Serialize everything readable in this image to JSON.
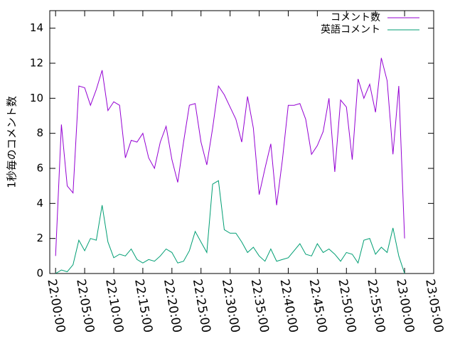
{
  "chart_data": {
    "type": "line",
    "ylabel": "1秒毎のコメント数",
    "x": [
      "22:00:00",
      "22:01:00",
      "22:02:00",
      "22:03:00",
      "22:04:00",
      "22:05:00",
      "22:06:00",
      "22:07:00",
      "22:08:00",
      "22:09:00",
      "22:10:00",
      "22:11:00",
      "22:12:00",
      "22:13:00",
      "22:14:00",
      "22:15:00",
      "22:16:00",
      "22:17:00",
      "22:18:00",
      "22:19:00",
      "22:20:00",
      "22:21:00",
      "22:22:00",
      "22:23:00",
      "22:24:00",
      "22:25:00",
      "22:26:00",
      "22:27:00",
      "22:28:00",
      "22:29:00",
      "22:30:00",
      "22:31:00",
      "22:32:00",
      "22:33:00",
      "22:34:00",
      "22:35:00",
      "22:36:00",
      "22:37:00",
      "22:38:00",
      "22:39:00",
      "22:40:00",
      "22:41:00",
      "22:42:00",
      "22:43:00",
      "22:44:00",
      "22:45:00",
      "22:46:00",
      "22:47:00",
      "22:48:00",
      "22:49:00",
      "22:50:00",
      "22:51:00",
      "22:52:00",
      "22:53:00",
      "22:54:00",
      "22:55:00",
      "22:56:00",
      "22:57:00",
      "22:58:00",
      "22:59:00",
      "23:00:00"
    ],
    "series": [
      {
        "name": "コメント数",
        "color": "#9400d3",
        "values": [
          1,
          8.5,
          5.0,
          4.6,
          10.7,
          10.6,
          9.6,
          10.5,
          11.6,
          9.3,
          9.8,
          9.6,
          6.6,
          7.6,
          7.5,
          8.0,
          6.6,
          6.0,
          7.5,
          8.4,
          6.5,
          5.2,
          7.5,
          9.6,
          9.7,
          7.5,
          6.2,
          8.3,
          10.7,
          10.2,
          9.5,
          8.8,
          7.5,
          10.1,
          8.3,
          4.5,
          6.0,
          7.4,
          3.9,
          6.5,
          9.6,
          9.6,
          9.7,
          8.8,
          6.8,
          7.3,
          8.1,
          10.0,
          5.8,
          9.9,
          9.5,
          6.5,
          11.1,
          10.0,
          10.8,
          9.2,
          12.3,
          11.0,
          6.8,
          10.7,
          2.0
        ]
      },
      {
        "name": "英語コメント",
        "color": "#009e73",
        "values": [
          0,
          0.2,
          0.1,
          0.5,
          1.9,
          1.3,
          2.0,
          1.9,
          3.9,
          1.8,
          0.9,
          1.1,
          1.0,
          1.4,
          0.8,
          0.6,
          0.8,
          0.7,
          1.0,
          1.4,
          1.2,
          0.6,
          0.7,
          1.3,
          2.4,
          1.8,
          1.2,
          5.1,
          5.3,
          2.5,
          2.3,
          2.3,
          1.8,
          1.2,
          1.5,
          1.0,
          0.7,
          1.4,
          0.7,
          0.8,
          0.9,
          1.3,
          1.7,
          1.1,
          1.0,
          1.7,
          1.2,
          1.4,
          1.1,
          0.7,
          1.2,
          1.1,
          0.6,
          1.9,
          2.0,
          1.1,
          1.5,
          1.2,
          2.6,
          1.0,
          0
        ]
      }
    ],
    "xlim": [
      "21:59:00",
      "23:05:00"
    ],
    "xticks": [
      "22:00:00",
      "22:05:00",
      "22:10:00",
      "22:15:00",
      "22:20:00",
      "22:25:00",
      "22:30:00",
      "22:35:00",
      "22:40:00",
      "22:45:00",
      "22:50:00",
      "22:55:00",
      "23:00:00",
      "23:05:00"
    ],
    "ylim": [
      0,
      15
    ],
    "yticks": [
      0,
      2,
      4,
      6,
      8,
      10,
      12,
      14
    ],
    "legend": "upper right"
  }
}
